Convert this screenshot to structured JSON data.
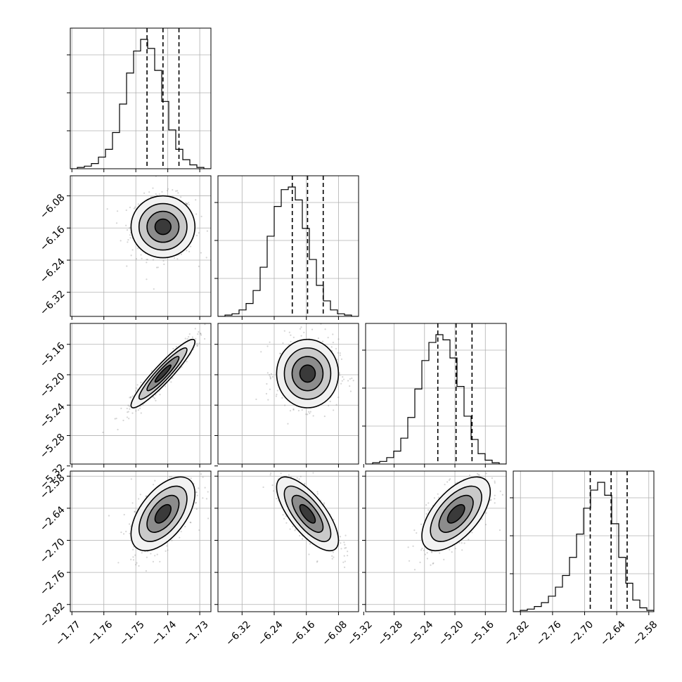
{
  "chart_data": {
    "type": "corner",
    "parameters": [
      {
        "ticks": [
          -1.77,
          -1.76,
          -1.75,
          -1.74,
          -1.73
        ],
        "tick_labels": [
          "−1.77",
          "−1.76",
          "−1.75",
          "−1.74",
          "−1.73"
        ],
        "range": [
          -1.7705,
          -1.7265
        ],
        "quantiles": [
          -1.7465,
          -1.7415,
          -1.7365
        ],
        "hist": [
          0.0,
          0.01,
          0.02,
          0.04,
          0.09,
          0.15,
          0.28,
          0.5,
          0.74,
          0.91,
          1.0,
          0.93,
          0.76,
          0.52,
          0.3,
          0.15,
          0.07,
          0.03,
          0.01,
          0.0
        ]
      },
      {
        "ticks": [
          -6.32,
          -6.24,
          -6.16,
          -6.08
        ],
        "tick_labels": [
          "−6.32",
          "−6.24",
          "−6.16",
          "−6.08"
        ],
        "range": [
          -6.38,
          -6.03
        ],
        "quantiles": [
          -6.195,
          -6.157,
          -6.118
        ],
        "hist": [
          0.0,
          0.01,
          0.02,
          0.05,
          0.1,
          0.2,
          0.38,
          0.62,
          0.85,
          0.98,
          1.0,
          0.9,
          0.68,
          0.44,
          0.24,
          0.12,
          0.05,
          0.02,
          0.01,
          0.0
        ]
      },
      {
        "ticks": [
          -5.32,
          -5.28,
          -5.24,
          -5.2,
          -5.16
        ],
        "tick_labels": [
          "−5.32",
          "−5.28",
          "−5.24",
          "−5.20",
          "−5.16"
        ],
        "range": [
          -5.3175,
          -5.1325
        ],
        "quantiles": [
          -5.2225,
          -5.1985,
          -5.1775
        ],
        "hist": [
          0.0,
          0.01,
          0.02,
          0.05,
          0.1,
          0.2,
          0.36,
          0.58,
          0.8,
          0.94,
          1.0,
          0.96,
          0.82,
          0.6,
          0.37,
          0.19,
          0.08,
          0.03,
          0.01,
          0.0
        ]
      },
      {
        "ticks": [
          -2.82,
          -2.76,
          -2.7,
          -2.64,
          -2.58
        ],
        "tick_labels": [
          "−2.82",
          "−2.76",
          "−2.70",
          "−2.64",
          "−2.58"
        ],
        "range": [
          -2.8335,
          -2.5705
        ],
        "quantiles": [
          -2.6895,
          -2.6505,
          -2.6205
        ],
        "hist": [
          0.0,
          0.01,
          0.02,
          0.04,
          0.07,
          0.12,
          0.19,
          0.28,
          0.42,
          0.6,
          0.8,
          0.94,
          1.0,
          0.9,
          0.68,
          0.42,
          0.22,
          0.09,
          0.03,
          0.01
        ]
      }
    ],
    "correlations": [
      [
        1.0,
        0.0,
        0.93,
        0.55
      ],
      [
        0.0,
        1.0,
        0.0,
        -0.72
      ],
      [
        0.93,
        0.0,
        1.0,
        0.6
      ],
      [
        0.55,
        -0.72,
        0.6,
        1.0
      ]
    ],
    "contour_levels": [
      "0.5σ",
      "1σ",
      "1.5σ",
      "2σ"
    ],
    "grid": true
  }
}
